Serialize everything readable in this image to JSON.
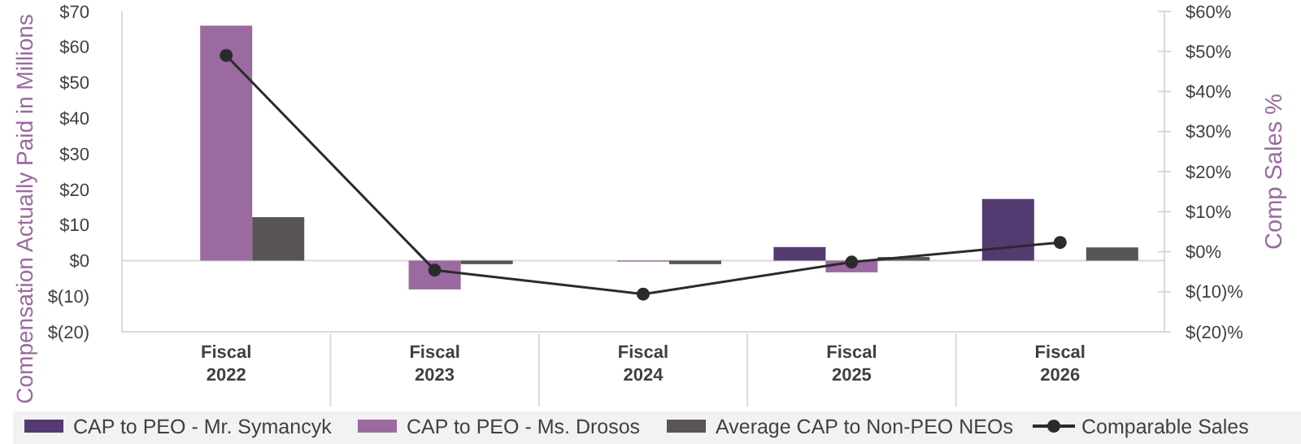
{
  "chart_data": {
    "type": "bar",
    "ylabel": "Compensation Actually Paid in Millions",
    "y2label": "Comp Sales %",
    "categories": [
      "Fiscal\n2022",
      "Fiscal\n2023",
      "Fiscal\n2024",
      "Fiscal\n2025",
      "Fiscal\n2026"
    ],
    "series": [
      {
        "name": "CAP to PEO - Mr. Symancyk",
        "color": "#533a71",
        "values": [
          null,
          null,
          null,
          3.8,
          17.3
        ]
      },
      {
        "name": "CAP to PEO - Ms. Drosos",
        "color": "#9b6aa0",
        "values": [
          66,
          -8.1,
          -0.3,
          -3.3,
          null
        ]
      },
      {
        "name": "Average CAP to Non-PEO NEOs",
        "color": "#595455",
        "values": [
          12.2,
          -1,
          -1,
          1,
          3.7
        ]
      },
      {
        "name": "Comparable Sales",
        "color": "#2b2b2b",
        "type": "line",
        "axis": "y2",
        "marker": "circle",
        "values": [
          49,
          -4.6,
          -10.6,
          -2.6,
          2.3
        ]
      }
    ],
    "ylim": [
      -20,
      70
    ],
    "yticks": [
      {
        "value": -20,
        "label": "$(20)"
      },
      {
        "value": -10,
        "label": "$(10)"
      },
      {
        "value": 0,
        "label": "$0"
      },
      {
        "value": 10,
        "label": "$10"
      },
      {
        "value": 20,
        "label": "$20"
      },
      {
        "value": 30,
        "label": "$30"
      },
      {
        "value": 40,
        "label": "$40"
      },
      {
        "value": 50,
        "label": "$50"
      },
      {
        "value": 60,
        "label": "$60"
      },
      {
        "value": 70,
        "label": "$70"
      }
    ],
    "y2lim": [
      -20,
      60
    ],
    "y2ticks": [
      {
        "value": -20,
        "label": "$(20)%"
      },
      {
        "value": -10,
        "label": "$(10)%"
      },
      {
        "value": 0,
        "label": "$0%"
      },
      {
        "value": 10,
        "label": "$10%"
      },
      {
        "value": 20,
        "label": "$20%"
      },
      {
        "value": 30,
        "label": "$30%"
      },
      {
        "value": 40,
        "label": "$40%"
      },
      {
        "value": 50,
        "label": "$50%"
      },
      {
        "value": 60,
        "label": "$60%"
      }
    ],
    "legend": "bottom"
  }
}
